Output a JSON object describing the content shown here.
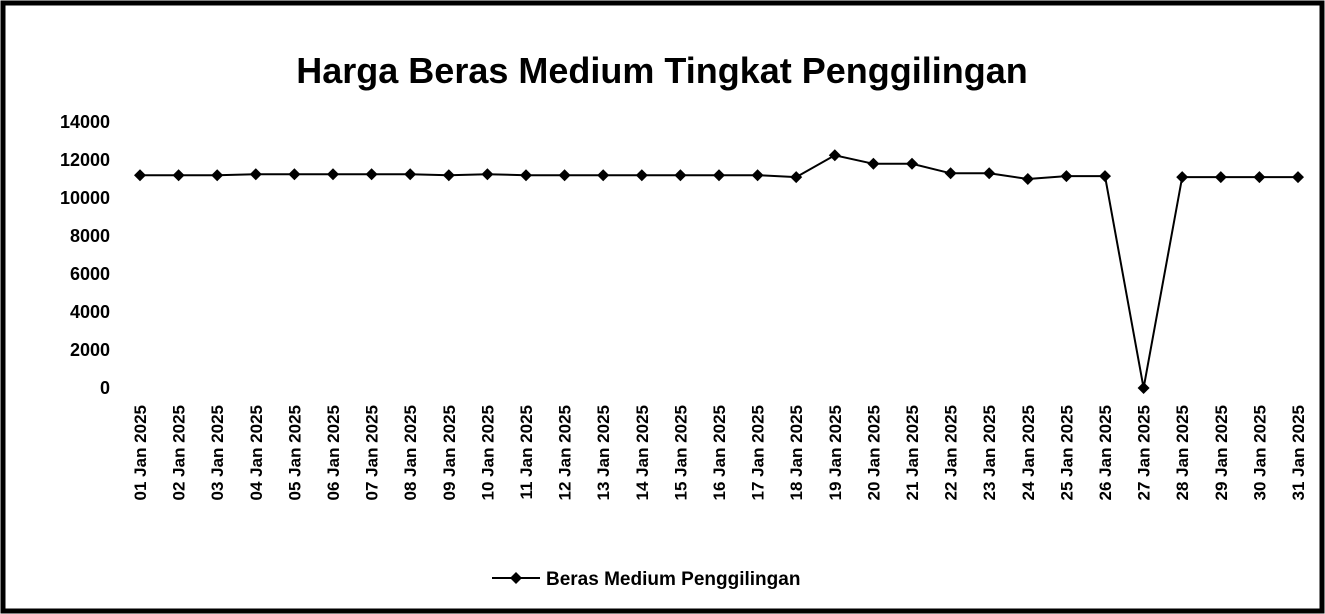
{
  "chart_data": {
    "type": "line",
    "title": "Harga Beras Medium Tingkat Penggilingan",
    "categories": [
      "01 Jan 2025",
      "02 Jan 2025",
      "03 Jan 2025",
      "04 Jan 2025",
      "05 Jan 2025",
      "06 Jan 2025",
      "07 Jan 2025",
      "08 Jan 2025",
      "09 Jan 2025",
      "10 Jan 2025",
      "11 Jan 2025",
      "12 Jan 2025",
      "13 Jan 2025",
      "14 Jan 2025",
      "15 Jan 2025",
      "16 Jan 2025",
      "17 Jan 2025",
      "18 Jan 2025",
      "19 Jan 2025",
      "20 Jan 2025",
      "21 Jan 2025",
      "22 Jan 2025",
      "23 Jan 2025",
      "24 Jan 2025",
      "25 Jan 2025",
      "26 Jan 2025",
      "27 Jan 2025",
      "28 Jan 2025",
      "29 Jan 2025",
      "30 Jan 2025",
      "31 Jan 2025"
    ],
    "series": [
      {
        "name": "Beras Medium Penggilingan",
        "color": "#000000",
        "values": [
          11200,
          11200,
          11200,
          11250,
          11250,
          11250,
          11250,
          11250,
          11200,
          11250,
          11200,
          11200,
          11200,
          11200,
          11200,
          11200,
          11200,
          11100,
          12250,
          11800,
          11800,
          11300,
          11300,
          11000,
          11150,
          11150,
          0,
          11100,
          11100,
          11100,
          11100
        ]
      }
    ],
    "ylim": [
      0,
      14000
    ],
    "yticks": [
      0,
      2000,
      4000,
      6000,
      8000,
      10000,
      12000,
      14000
    ],
    "grid": false,
    "legend": "bottom"
  }
}
